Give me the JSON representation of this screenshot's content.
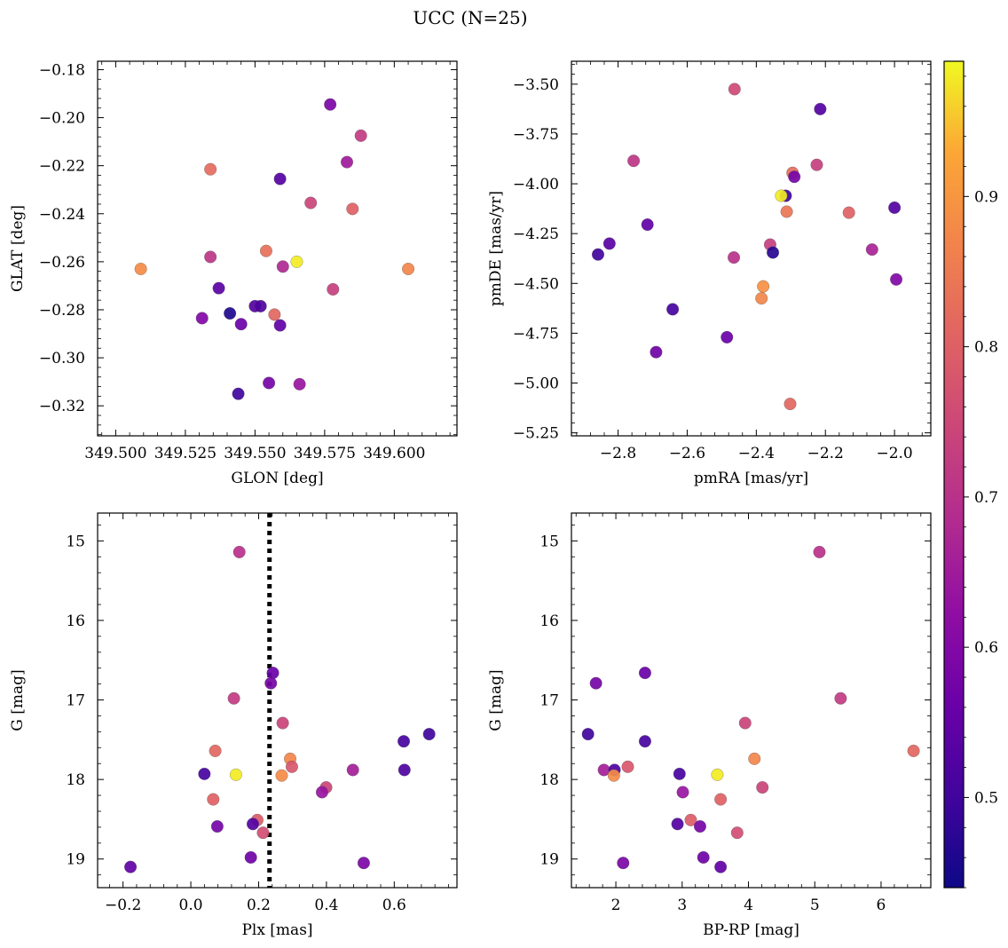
{
  "figure": {
    "title": "UCC (N=25)"
  },
  "colorbar": {
    "cmap": "plasma",
    "vmin": 0.44,
    "vmax": 0.99,
    "ticks": [
      0.5,
      0.6,
      0.7,
      0.8,
      0.9
    ]
  },
  "chart_data": [
    {
      "type": "scatter",
      "xlabel": "GLON [deg]",
      "ylabel": "GLAT [deg]",
      "xlim": [
        349.4935,
        349.6225
      ],
      "ylim": [
        -0.3325,
        -0.1765
      ],
      "x_ticks": [
        349.5,
        349.525,
        349.55,
        349.575,
        349.6
      ],
      "x_tick_labels": [
        "349.500",
        "349.525",
        "349.550",
        "349.575",
        "349.600"
      ],
      "y_ticks": [
        -0.18,
        -0.2,
        -0.22,
        -0.24,
        -0.26,
        -0.28,
        -0.3,
        -0.32
      ],
      "y_tick_labels": [
        "−0.18",
        "−0.20",
        "−0.22",
        "−0.24",
        "−0.26",
        "−0.28",
        "−0.30",
        "−0.32"
      ],
      "points": [
        {
          "x": 349.577,
          "y": -0.1945,
          "c": 0.59
        },
        {
          "x": 349.588,
          "y": -0.2075,
          "c": 0.72
        },
        {
          "x": 349.534,
          "y": -0.2215,
          "c": 0.82
        },
        {
          "x": 349.583,
          "y": -0.2185,
          "c": 0.65
        },
        {
          "x": 349.559,
          "y": -0.2255,
          "c": 0.53
        },
        {
          "x": 349.57,
          "y": -0.2355,
          "c": 0.74
        },
        {
          "x": 349.585,
          "y": -0.238,
          "c": 0.8
        },
        {
          "x": 349.554,
          "y": -0.2555,
          "c": 0.83
        },
        {
          "x": 349.509,
          "y": -0.263,
          "c": 0.88
        },
        {
          "x": 349.534,
          "y": -0.258,
          "c": 0.71
        },
        {
          "x": 349.565,
          "y": -0.26,
          "c": 0.98
        },
        {
          "x": 349.56,
          "y": -0.262,
          "c": 0.68
        },
        {
          "x": 349.605,
          "y": -0.263,
          "c": 0.87
        },
        {
          "x": 349.578,
          "y": -0.2715,
          "c": 0.73
        },
        {
          "x": 349.537,
          "y": -0.271,
          "c": 0.54
        },
        {
          "x": 349.531,
          "y": -0.2835,
          "c": 0.6
        },
        {
          "x": 349.541,
          "y": -0.2815,
          "c": 0.46
        },
        {
          "x": 349.55,
          "y": -0.2785,
          "c": 0.53
        },
        {
          "x": 349.552,
          "y": -0.2785,
          "c": 0.52
        },
        {
          "x": 349.557,
          "y": -0.282,
          "c": 0.81
        },
        {
          "x": 349.545,
          "y": -0.286,
          "c": 0.56
        },
        {
          "x": 349.559,
          "y": -0.2865,
          "c": 0.55
        },
        {
          "x": 349.555,
          "y": -0.3105,
          "c": 0.58
        },
        {
          "x": 349.566,
          "y": -0.311,
          "c": 0.64
        },
        {
          "x": 349.544,
          "y": -0.315,
          "c": 0.5
        }
      ]
    },
    {
      "type": "scatter",
      "xlabel": "pmRA [mas/yr]",
      "ylabel": "pmDE [mas/yr]",
      "xlim": [
        -2.935,
        -1.895
      ],
      "ylim": [
        -5.265,
        -3.385
      ],
      "x_ticks": [
        -2.8,
        -2.6,
        -2.4,
        -2.2,
        -2.0
      ],
      "x_tick_labels": [
        "−2.8",
        "−2.6",
        "−2.4",
        "−2.2",
        "−2.0"
      ],
      "y_ticks": [
        -3.5,
        -3.75,
        -4.0,
        -4.25,
        -4.5,
        -4.75,
        -5.0,
        -5.25
      ],
      "y_tick_labels": [
        "−3.50",
        "−3.75",
        "−4.00",
        "−4.25",
        "−4.50",
        "−4.75",
        "−5.00",
        "−5.25"
      ],
      "points": [
        {
          "x": -2.463,
          "y": -3.525,
          "c": 0.75
        },
        {
          "x": -2.215,
          "y": -3.625,
          "c": 0.53
        },
        {
          "x": -2.755,
          "y": -3.885,
          "c": 0.71
        },
        {
          "x": -2.225,
          "y": -3.905,
          "c": 0.73
        },
        {
          "x": -2.295,
          "y": -3.945,
          "c": 0.82
        },
        {
          "x": -2.29,
          "y": -3.965,
          "c": 0.58
        },
        {
          "x": -2.315,
          "y": -4.06,
          "c": 0.5
        },
        {
          "x": -2.328,
          "y": -4.06,
          "c": 0.98
        },
        {
          "x": -2.0,
          "y": -4.12,
          "c": 0.53
        },
        {
          "x": -2.312,
          "y": -4.14,
          "c": 0.84
        },
        {
          "x": -2.132,
          "y": -4.145,
          "c": 0.8
        },
        {
          "x": -2.715,
          "y": -4.205,
          "c": 0.55
        },
        {
          "x": -2.825,
          "y": -4.3,
          "c": 0.54
        },
        {
          "x": -2.36,
          "y": -4.305,
          "c": 0.73
        },
        {
          "x": -2.352,
          "y": -4.345,
          "c": 0.47
        },
        {
          "x": -2.858,
          "y": -4.355,
          "c": 0.5
        },
        {
          "x": -2.465,
          "y": -4.37,
          "c": 0.7
        },
        {
          "x": -2.065,
          "y": -4.33,
          "c": 0.67
        },
        {
          "x": -1.995,
          "y": -4.48,
          "c": 0.6
        },
        {
          "x": -2.38,
          "y": -4.515,
          "c": 0.89
        },
        {
          "x": -2.385,
          "y": -4.575,
          "c": 0.87
        },
        {
          "x": -2.642,
          "y": -4.63,
          "c": 0.51
        },
        {
          "x": -2.485,
          "y": -4.77,
          "c": 0.56
        },
        {
          "x": -2.69,
          "y": -4.845,
          "c": 0.57
        },
        {
          "x": -2.302,
          "y": -5.105,
          "c": 0.81
        }
      ]
    },
    {
      "type": "scatter",
      "xlabel": "Plx [mas]",
      "ylabel": "G [mag]",
      "xlim": [
        -0.275,
        0.785
      ],
      "ylim": [
        19.36,
        14.65
      ],
      "y_inverted": true,
      "x_ticks": [
        -0.2,
        0.0,
        0.2,
        0.4,
        0.6
      ],
      "x_tick_labels": [
        "−0.2",
        "0.0",
        "0.2",
        "0.4",
        "0.6"
      ],
      "y_ticks": [
        15,
        16,
        17,
        18,
        19
      ],
      "y_tick_labels": [
        "15",
        "16",
        "17",
        "18",
        "19"
      ],
      "vline": {
        "x": 0.232,
        "style": "dotted",
        "color": "#000000"
      },
      "points": [
        {
          "x": 0.143,
          "y": 15.14,
          "c": 0.7
        },
        {
          "x": 0.242,
          "y": 16.66,
          "c": 0.56
        },
        {
          "x": 0.236,
          "y": 16.79,
          "c": 0.58
        },
        {
          "x": 0.127,
          "y": 16.98,
          "c": 0.72
        },
        {
          "x": 0.271,
          "y": 17.29,
          "c": 0.74
        },
        {
          "x": 0.703,
          "y": 17.43,
          "c": 0.5
        },
        {
          "x": 0.628,
          "y": 17.52,
          "c": 0.51
        },
        {
          "x": 0.072,
          "y": 17.64,
          "c": 0.81
        },
        {
          "x": 0.293,
          "y": 17.74,
          "c": 0.87
        },
        {
          "x": 0.298,
          "y": 17.84,
          "c": 0.78
        },
        {
          "x": 0.478,
          "y": 17.88,
          "c": 0.66
        },
        {
          "x": 0.63,
          "y": 17.88,
          "c": 0.52
        },
        {
          "x": 0.04,
          "y": 17.93,
          "c": 0.51
        },
        {
          "x": 0.133,
          "y": 17.94,
          "c": 0.98
        },
        {
          "x": 0.268,
          "y": 17.95,
          "c": 0.88
        },
        {
          "x": 0.399,
          "y": 18.1,
          "c": 0.74
        },
        {
          "x": 0.387,
          "y": 18.16,
          "c": 0.64
        },
        {
          "x": 0.066,
          "y": 18.25,
          "c": 0.8
        },
        {
          "x": 0.196,
          "y": 18.51,
          "c": 0.79
        },
        {
          "x": 0.183,
          "y": 18.56,
          "c": 0.53
        },
        {
          "x": 0.078,
          "y": 18.59,
          "c": 0.58
        },
        {
          "x": 0.213,
          "y": 18.67,
          "c": 0.76
        },
        {
          "x": 0.177,
          "y": 18.98,
          "c": 0.57
        },
        {
          "x": 0.51,
          "y": 19.05,
          "c": 0.59
        },
        {
          "x": -0.178,
          "y": 19.1,
          "c": 0.55
        }
      ]
    },
    {
      "type": "scatter",
      "xlabel": "BP-RP [mag]",
      "ylabel": "G [mag]",
      "xlim": [
        1.33,
        6.75
      ],
      "ylim": [
        19.36,
        14.65
      ],
      "y_inverted": true,
      "x_ticks": [
        2,
        3,
        4,
        5,
        6
      ],
      "x_tick_labels": [
        "2",
        "3",
        "4",
        "5",
        "6"
      ],
      "y_ticks": [
        15,
        16,
        17,
        18,
        19
      ],
      "y_tick_labels": [
        "15",
        "16",
        "17",
        "18",
        "19"
      ],
      "points": [
        {
          "x": 5.07,
          "y": 15.14,
          "c": 0.7
        },
        {
          "x": 2.44,
          "y": 16.66,
          "c": 0.56
        },
        {
          "x": 1.7,
          "y": 16.79,
          "c": 0.58
        },
        {
          "x": 5.39,
          "y": 16.98,
          "c": 0.72
        },
        {
          "x": 3.95,
          "y": 17.29,
          "c": 0.74
        },
        {
          "x": 1.58,
          "y": 17.43,
          "c": 0.5
        },
        {
          "x": 2.44,
          "y": 17.52,
          "c": 0.51
        },
        {
          "x": 6.49,
          "y": 17.64,
          "c": 0.81
        },
        {
          "x": 4.09,
          "y": 17.74,
          "c": 0.87
        },
        {
          "x": 2.18,
          "y": 17.84,
          "c": 0.78
        },
        {
          "x": 1.82,
          "y": 17.88,
          "c": 0.66
        },
        {
          "x": 1.98,
          "y": 17.88,
          "c": 0.52
        },
        {
          "x": 2.96,
          "y": 17.93,
          "c": 0.51
        },
        {
          "x": 3.53,
          "y": 17.94,
          "c": 0.98
        },
        {
          "x": 1.97,
          "y": 17.95,
          "c": 0.88
        },
        {
          "x": 4.21,
          "y": 18.1,
          "c": 0.74
        },
        {
          "x": 3.01,
          "y": 18.16,
          "c": 0.64
        },
        {
          "x": 3.58,
          "y": 18.25,
          "c": 0.8
        },
        {
          "x": 3.13,
          "y": 18.51,
          "c": 0.79
        },
        {
          "x": 2.93,
          "y": 18.56,
          "c": 0.53
        },
        {
          "x": 3.27,
          "y": 18.59,
          "c": 0.58
        },
        {
          "x": 3.83,
          "y": 18.67,
          "c": 0.76
        },
        {
          "x": 3.32,
          "y": 18.98,
          "c": 0.57
        },
        {
          "x": 2.11,
          "y": 19.05,
          "c": 0.59
        },
        {
          "x": 3.58,
          "y": 19.1,
          "c": 0.55
        }
      ]
    }
  ]
}
